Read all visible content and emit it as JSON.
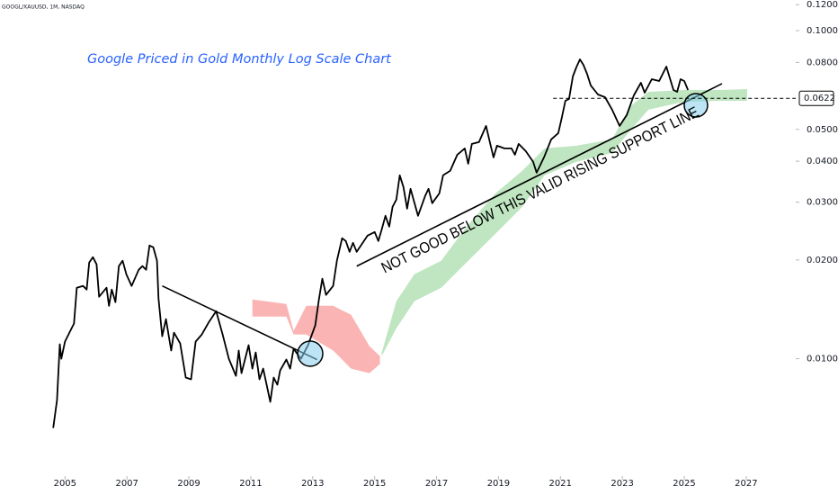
{
  "chart_data": {
    "type": "line",
    "source_label": "GOOGL/XAUUSD, 1M, NASDAQ",
    "title": "Google Priced in Gold Monthly Log Scale Chart",
    "annotation": "NOT GOOD BELOW THIS VALID RISING SUPPORT LINE",
    "log_scale": true,
    "grid": false,
    "xlim": [
      2002.9,
      2028.6
    ],
    "ylim": [
      0.0045,
      0.124
    ],
    "xticks": [
      2005,
      2007,
      2009,
      2011,
      2013,
      2015,
      2017,
      2019,
      2021,
      2023,
      2025,
      2027
    ],
    "yticks": [
      {
        "value": 0.12,
        "label": "0.1200"
      },
      {
        "value": 0.1,
        "label": "0.1000"
      },
      {
        "value": 0.08,
        "label": "0.0800"
      },
      {
        "value": 0.05,
        "label": "0.0500"
      },
      {
        "value": 0.04,
        "label": "0.0400"
      },
      {
        "value": 0.03,
        "label": "0.0300"
      },
      {
        "value": 0.02,
        "label": "0.0200"
      },
      {
        "value": 0.01,
        "label": "0.0100"
      }
    ],
    "last_price": {
      "value": 0.0622,
      "label": "0.0622"
    },
    "series": [
      {
        "color": "#000000",
        "x": [
          2004.62,
          2004.74,
          2004.83,
          2004.88,
          2005.0,
          2005.17,
          2005.29,
          2005.38,
          2005.58,
          2005.7,
          2005.78,
          2005.9,
          2006.02,
          2006.1,
          2006.34,
          2006.42,
          2006.51,
          2006.63,
          2006.74,
          2006.86,
          2006.98,
          2007.15,
          2007.38,
          2007.5,
          2007.62,
          2007.73,
          2007.85,
          2007.97,
          2008.02,
          2008.14,
          2008.26,
          2008.43,
          2008.52,
          2008.72,
          2008.9,
          2009.07,
          2009.13,
          2009.22,
          2009.42,
          2009.65,
          2009.88,
          2010.09,
          2010.29,
          2010.52,
          2010.61,
          2010.7,
          2010.93,
          2011.05,
          2011.16,
          2011.28,
          2011.4,
          2011.63,
          2011.74,
          2011.86,
          2011.95,
          2012.15,
          2012.27,
          2012.38,
          2012.62,
          2012.85,
          2013.08,
          2013.2,
          2013.31,
          2013.43,
          2013.66,
          2013.78,
          2013.95,
          2014.07,
          2014.19,
          2014.3,
          2014.42,
          2014.77,
          2015.0,
          2015.12,
          2015.23,
          2015.35,
          2015.47,
          2015.58,
          2015.7,
          2015.81,
          2015.93,
          2016.05,
          2016.16,
          2016.4,
          2016.63,
          2016.74,
          2016.86,
          2017.09,
          2017.21,
          2017.44,
          2017.67,
          2017.91,
          2018.02,
          2018.14,
          2018.37,
          2018.6,
          2018.72,
          2018.84,
          2018.95,
          2019.19,
          2019.42,
          2019.53,
          2019.65,
          2019.88,
          2020.12,
          2020.23,
          2020.47,
          2020.7,
          2020.93,
          2021.05,
          2021.16,
          2021.28,
          2021.4,
          2021.51,
          2021.63,
          2021.74,
          2021.86,
          2021.98,
          2022.21,
          2022.44,
          2022.67,
          2022.91,
          2023.14,
          2023.37,
          2023.6,
          2023.72,
          2023.95,
          2024.19,
          2024.42,
          2024.65,
          2024.77,
          2024.88,
          2025.0,
          2025.12
        ],
        "values": [
          0.00615,
          0.00748,
          0.01107,
          0.01,
          0.01128,
          0.01216,
          0.0128,
          0.01646,
          0.01667,
          0.01625,
          0.01964,
          0.0204,
          0.0194,
          0.01545,
          0.01646,
          0.0145,
          0.01625,
          0.01488,
          0.01915,
          0.01989,
          0.0181,
          0.01667,
          0.01867,
          0.01915,
          0.01867,
          0.02214,
          0.02186,
          0.01989,
          0.01526,
          0.01171,
          0.0132,
          0.01059,
          0.01201,
          0.01113,
          0.00876,
          0.00865,
          0.00963,
          0.01128,
          0.01186,
          0.01295,
          0.01397,
          0.01186,
          0.01,
          0.00887,
          0.01059,
          0.00904,
          0.011,
          0.00933,
          0.01045,
          0.00865,
          0.00933,
          0.00739,
          0.00876,
          0.00833,
          0.00921,
          0.00994,
          0.00933,
          0.01072,
          0.01,
          0.011,
          0.01263,
          0.01516,
          0.01753,
          0.01565,
          0.01667,
          0.01989,
          0.02329,
          0.02285,
          0.02118,
          0.02256,
          0.02118,
          0.02373,
          0.02433,
          0.02285,
          0.0248,
          0.02726,
          0.02528,
          0.02904,
          0.03055,
          0.03622,
          0.03337,
          0.02868,
          0.03296,
          0.02726,
          0.03132,
          0.03296,
          0.02979,
          0.03191,
          0.03622,
          0.03738,
          0.04186,
          0.04376,
          0.0393,
          0.04517,
          0.04574,
          0.05124,
          0.04574,
          0.04109,
          0.04459,
          0.04376,
          0.04376,
          0.04186,
          0.04517,
          0.04294,
          0.0398,
          0.0369,
          0.04109,
          0.04662,
          0.04872,
          0.05458,
          0.06113,
          0.06193,
          0.07247,
          0.07722,
          0.08172,
          0.0787,
          0.07388,
          0.06807,
          0.0639,
          0.0627,
          0.05741,
          0.05124,
          0.05528,
          0.06349,
          0.06935,
          0.06471,
          0.07112,
          0.07023,
          0.0777,
          0.06594,
          0.06511,
          0.07112,
          0.07023,
          0.06594
        ]
      }
    ],
    "clouds": [
      {
        "color": "#fbb4b4",
        "x": [
          2011.05,
          2012.15,
          2012.38,
          2012.79,
          2013.66,
          2014.24,
          2014.83,
          2015.17
        ],
        "upper": [
          0.01516,
          0.01469,
          0.01216,
          0.0145,
          0.0145,
          0.01362,
          0.01093,
          0.01019
        ],
        "lower": [
          0.01345,
          0.01345,
          0.01186,
          0.01186,
          0.01059,
          0.00933,
          0.00904,
          0.00963
        ]
      },
      {
        "color": "#bfe5c1",
        "x": [
          2015.23,
          2015.7,
          2016.28,
          2017.15,
          2018.02,
          2018.9,
          2019.77,
          2020.49,
          2021.51,
          2022.67,
          2023.26,
          2023.84,
          2025.0,
          2026.16,
          2027.03
        ],
        "upper": [
          0.01045,
          0.01497,
          0.0181,
          0.01989,
          0.02561,
          0.03191,
          0.03738,
          0.04376,
          0.04459,
          0.04662,
          0.05886,
          0.06511,
          0.06594,
          0.06594,
          0.06637
        ],
        "lower": [
          0.01019,
          0.01239,
          0.01497,
          0.01646,
          0.01989,
          0.02403,
          0.02904,
          0.03622,
          0.0398,
          0.0424,
          0.04965,
          0.05741,
          0.06075,
          0.06113,
          0.06113
        ]
      }
    ],
    "trend_lines": [
      {
        "color": "#000000",
        "x": [
          2008.14,
          2013.14
        ],
        "values": [
          0.01667,
          0.00994
        ]
      },
      {
        "color": "#000000",
        "x": [
          2014.42,
          2026.22
        ],
        "values": [
          0.01915,
          0.06893
        ]
      }
    ]
  }
}
